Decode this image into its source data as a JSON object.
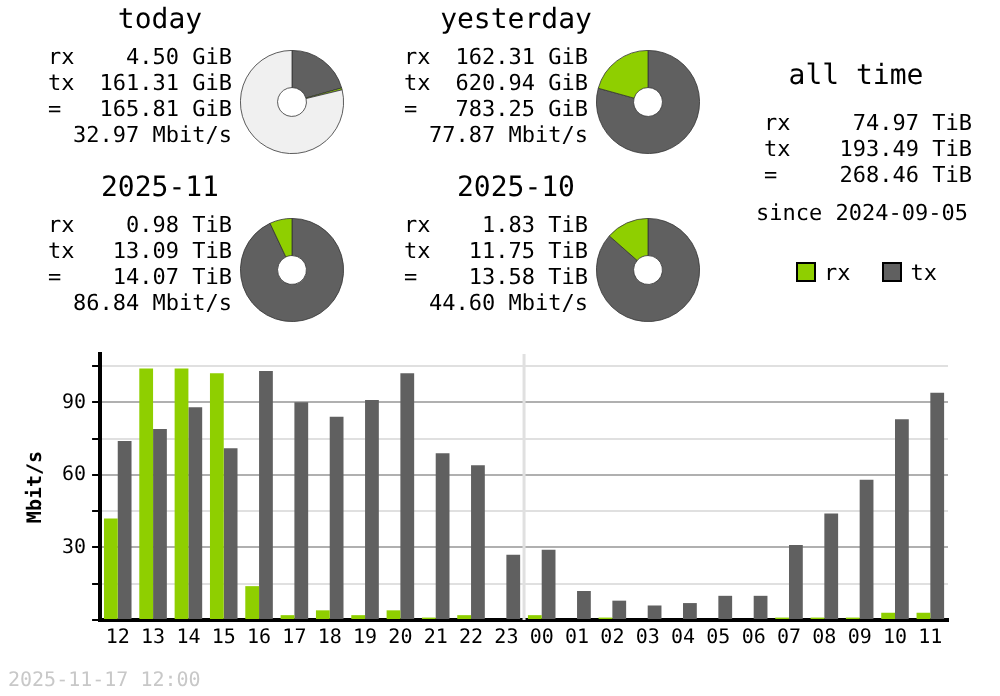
{
  "chart_data": [
    {
      "type": "donut",
      "title": "today",
      "categories": [
        null,
        null,
        null
      ],
      "values": [
        20.6,
        0.6,
        78.8
      ],
      "colors": [
        "#606060",
        "#8fcf00",
        "#f0f0f0"
      ],
      "annotations": [
        "rx 4.50 GiB",
        "tx 161.31 GiB",
        "= 165.81 GiB",
        "32.97 Mbit/s"
      ]
    },
    {
      "type": "donut",
      "title": "yesterday",
      "categories": [
        null,
        null
      ],
      "values": [
        79.3,
        20.7
      ],
      "colors": [
        "#606060",
        "#8fcf00"
      ],
      "annotations": [
        "rx 162.31 GiB",
        "tx 620.94 GiB",
        "= 783.25 GiB",
        "77.87 Mbit/s"
      ]
    },
    {
      "type": "other",
      "title": "all time",
      "annotations": [
        "rx 74.97 TiB",
        "tx 193.49 TiB",
        "= 268.46 TiB",
        "since 2024-09-05"
      ]
    },
    {
      "type": "donut",
      "title": "2025-11",
      "categories": [
        null,
        null
      ],
      "values": [
        93,
        7
      ],
      "colors": [
        "#606060",
        "#8fcf00"
      ],
      "annotations": [
        "rx 0.98 TiB",
        "tx 13.09 TiB",
        "= 14.07 TiB",
        "86.84 Mbit/s"
      ]
    },
    {
      "type": "donut",
      "title": "2025-10",
      "categories": [
        null,
        null
      ],
      "values": [
        86.5,
        13.5
      ],
      "colors": [
        "#606060",
        "#8fcf00"
      ],
      "annotations": [
        "rx 1.83 TiB",
        "tx 11.75 TiB",
        "= 13.58 TiB",
        "44.60 Mbit/s"
      ]
    },
    {
      "type": "bar",
      "ylabel": "Mbit/s",
      "categories": [
        "12",
        "13",
        "14",
        "15",
        "16",
        "17",
        "18",
        "19",
        "20",
        "21",
        "22",
        "23",
        "00",
        "01",
        "02",
        "03",
        "04",
        "05",
        "06",
        "07",
        "08",
        "09",
        "10",
        "11"
      ],
      "series": [
        {
          "name": "rx",
          "color": "#8fcf00",
          "values": [
            42,
            104,
            104,
            102,
            14,
            2,
            4,
            2,
            4,
            1,
            2,
            0,
            2,
            0,
            1,
            0,
            0,
            0,
            0,
            1,
            1,
            1,
            3,
            3
          ]
        },
        {
          "name": "tx",
          "color": "#606060",
          "values": [
            74,
            79,
            88,
            71,
            103,
            90,
            84,
            91,
            102,
            69,
            64,
            27,
            29,
            12,
            8,
            6,
            7,
            10,
            10,
            31,
            44,
            58,
            83,
            94
          ]
        }
      ],
      "ylim": [
        0,
        110
      ],
      "yticks": [
        {
          "value": 0,
          "label": null
        },
        {
          "value": 15,
          "label": null
        },
        30,
        {
          "value": 45,
          "label": null
        },
        60,
        {
          "value": 75,
          "label": null
        },
        90,
        {
          "value": 105,
          "label": null
        }
      ],
      "grid": "y",
      "legend": "top right",
      "ref_lines": [
        {
          "axis": "x",
          "value": "00",
          "color": "#e0e0e0"
        }
      ],
      "annotations": [
        "2025-11-17 12:00"
      ]
    }
  ]
}
